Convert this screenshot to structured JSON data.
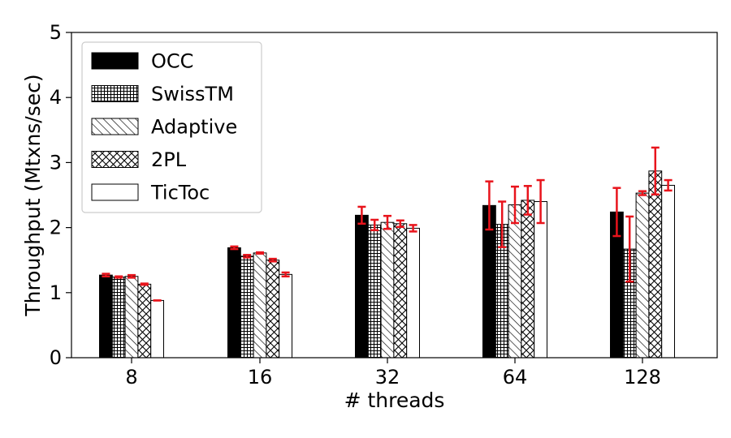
{
  "chart_data": {
    "type": "bar",
    "title": "",
    "xlabel": "# threads",
    "ylabel": "Throughput (Mtxns/sec)",
    "ylim": [
      0,
      5
    ],
    "yticks": [
      0,
      1,
      2,
      3,
      4,
      5
    ],
    "categories": [
      "8",
      "16",
      "32",
      "64",
      "128"
    ],
    "legend_position": "top-left",
    "grid": false,
    "error_bar_color": "#e8141c",
    "series": [
      {
        "name": "OCC",
        "pattern": "solid",
        "values": [
          1.27,
          1.69,
          2.19,
          2.34,
          2.24
        ],
        "errors": [
          0.02,
          0.02,
          0.13,
          0.37,
          0.37
        ]
      },
      {
        "name": "SwissTM",
        "pattern": "grid",
        "values": [
          1.24,
          1.56,
          2.04,
          2.05,
          1.67
        ],
        "errors": [
          0.01,
          0.02,
          0.08,
          0.35,
          0.5
        ]
      },
      {
        "name": "Adaptive",
        "pattern": "diagonal",
        "values": [
          1.25,
          1.61,
          2.08,
          2.35,
          2.53
        ],
        "errors": [
          0.02,
          0.01,
          0.1,
          0.28,
          0.03
        ]
      },
      {
        "name": "2PL",
        "pattern": "crosshatch",
        "values": [
          1.13,
          1.5,
          2.06,
          2.42,
          2.87
        ],
        "errors": [
          0.01,
          0.02,
          0.05,
          0.22,
          0.36
        ]
      },
      {
        "name": "TicToc",
        "pattern": "empty",
        "values": [
          0.88,
          1.28,
          1.99,
          2.4,
          2.65
        ],
        "errors": [
          0.0,
          0.03,
          0.05,
          0.33,
          0.08
        ]
      }
    ]
  }
}
